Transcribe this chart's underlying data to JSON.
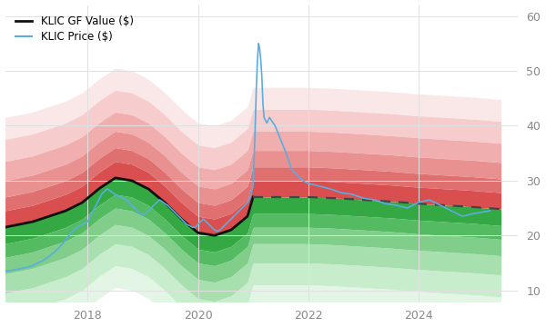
{
  "ylim": [
    8,
    62
  ],
  "xlim": [
    2016.5,
    2025.8
  ],
  "yticks": [
    10,
    20,
    30,
    40,
    50,
    60
  ],
  "xtick_years": [
    2018,
    2020,
    2022,
    2024
  ],
  "bg_color": "#ffffff",
  "grid_color": "#e0e0e0",
  "gf_value_color": "#111111",
  "price_color": "#5aade0",
  "dashed_color": "#444444",
  "red_shades": [
    "#d94f4f",
    "#e07070",
    "#e99090",
    "#f0aeae",
    "#f6cccc",
    "#fae8e8"
  ],
  "green_shades": [
    "#33a843",
    "#55bb63",
    "#80ce89",
    "#a8dfaf",
    "#c8edcc",
    "#e3f6e5"
  ],
  "gf_value_years": [
    2016.5,
    2017.0,
    2017.3,
    2017.6,
    2017.9,
    2018.2,
    2018.5,
    2018.8,
    2019.1,
    2019.4,
    2019.7,
    2020.0,
    2020.3,
    2020.6,
    2020.9,
    2021.0
  ],
  "gf_value_vals": [
    21.5,
    22.5,
    23.5,
    24.5,
    26.0,
    28.5,
    30.5,
    30.0,
    28.5,
    26.0,
    23.0,
    20.5,
    20.0,
    21.0,
    23.5,
    27.0
  ],
  "gf_forecast_years": [
    2021.0,
    2021.5,
    2022.0,
    2022.5,
    2023.0,
    2023.5,
    2024.0,
    2024.5,
    2025.0,
    2025.5
  ],
  "gf_forecast_vals": [
    27.0,
    27.0,
    27.0,
    26.8,
    26.5,
    26.2,
    25.8,
    25.5,
    25.2,
    24.8
  ],
  "price_years": [
    2016.5,
    2016.6,
    2016.7,
    2016.8,
    2016.9,
    2017.0,
    2017.1,
    2017.2,
    2017.3,
    2017.4,
    2017.5,
    2017.6,
    2017.7,
    2017.8,
    2017.9,
    2018.0,
    2018.05,
    2018.1,
    2018.15,
    2018.2,
    2018.25,
    2018.3,
    2018.35,
    2018.4,
    2018.45,
    2018.5,
    2018.55,
    2018.6,
    2018.65,
    2018.7,
    2018.75,
    2018.8,
    2018.85,
    2018.9,
    2018.95,
    2019.0,
    2019.05,
    2019.1,
    2019.15,
    2019.2,
    2019.25,
    2019.3,
    2019.35,
    2019.4,
    2019.45,
    2019.5,
    2019.55,
    2019.6,
    2019.65,
    2019.7,
    2019.75,
    2019.8,
    2019.85,
    2019.9,
    2019.95,
    2020.0,
    2020.05,
    2020.1,
    2020.15,
    2020.2,
    2020.25,
    2020.3,
    2020.35,
    2020.4,
    2020.45,
    2020.5,
    2020.55,
    2020.6,
    2020.65,
    2020.7,
    2020.75,
    2020.8,
    2020.85,
    2020.9,
    2020.95,
    2021.0,
    2021.02,
    2021.04,
    2021.06,
    2021.08,
    2021.1,
    2021.12,
    2021.14,
    2021.16,
    2021.18,
    2021.2,
    2021.25,
    2021.3,
    2021.4,
    2021.5,
    2021.6,
    2021.7,
    2021.8,
    2021.9,
    2022.0,
    2022.2,
    2022.4,
    2022.6,
    2022.8,
    2023.0,
    2023.2,
    2023.4,
    2023.6,
    2023.8,
    2024.0,
    2024.2,
    2024.4,
    2024.6,
    2024.8,
    2025.0,
    2025.3
  ],
  "price_vals": [
    13.5,
    13.6,
    13.8,
    14.0,
    14.2,
    14.5,
    15.0,
    15.5,
    16.2,
    17.0,
    18.0,
    19.2,
    20.5,
    21.5,
    22.0,
    22.5,
    23.5,
    24.5,
    25.5,
    26.5,
    27.5,
    28.0,
    28.5,
    28.2,
    27.8,
    27.5,
    27.2,
    27.0,
    26.8,
    26.5,
    26.0,
    25.5,
    25.0,
    24.5,
    24.0,
    23.8,
    24.0,
    24.5,
    25.0,
    25.5,
    26.0,
    26.5,
    26.2,
    25.8,
    25.5,
    25.0,
    24.5,
    24.0,
    23.5,
    23.0,
    22.5,
    22.0,
    21.8,
    21.5,
    21.5,
    22.0,
    22.5,
    23.0,
    22.5,
    22.0,
    21.5,
    21.0,
    20.8,
    21.0,
    21.5,
    22.0,
    22.5,
    23.0,
    23.5,
    24.0,
    24.5,
    25.0,
    25.5,
    26.0,
    27.0,
    29.0,
    34.0,
    40.0,
    47.0,
    52.0,
    55.0,
    54.0,
    52.0,
    49.0,
    44.0,
    41.5,
    40.5,
    41.5,
    40.0,
    37.5,
    35.0,
    32.0,
    31.0,
    30.0,
    29.5,
    29.0,
    28.5,
    27.8,
    27.5,
    26.8,
    26.5,
    25.8,
    25.5,
    25.0,
    26.0,
    26.5,
    25.5,
    24.5,
    23.5,
    24.0,
    24.5
  ],
  "band_offsets_up": [
    3.0,
    5.5,
    8.5,
    12.0,
    16.0,
    20.0
  ],
  "band_offsets_down": [
    3.0,
    5.5,
    8.5,
    12.0,
    16.0,
    20.0
  ]
}
